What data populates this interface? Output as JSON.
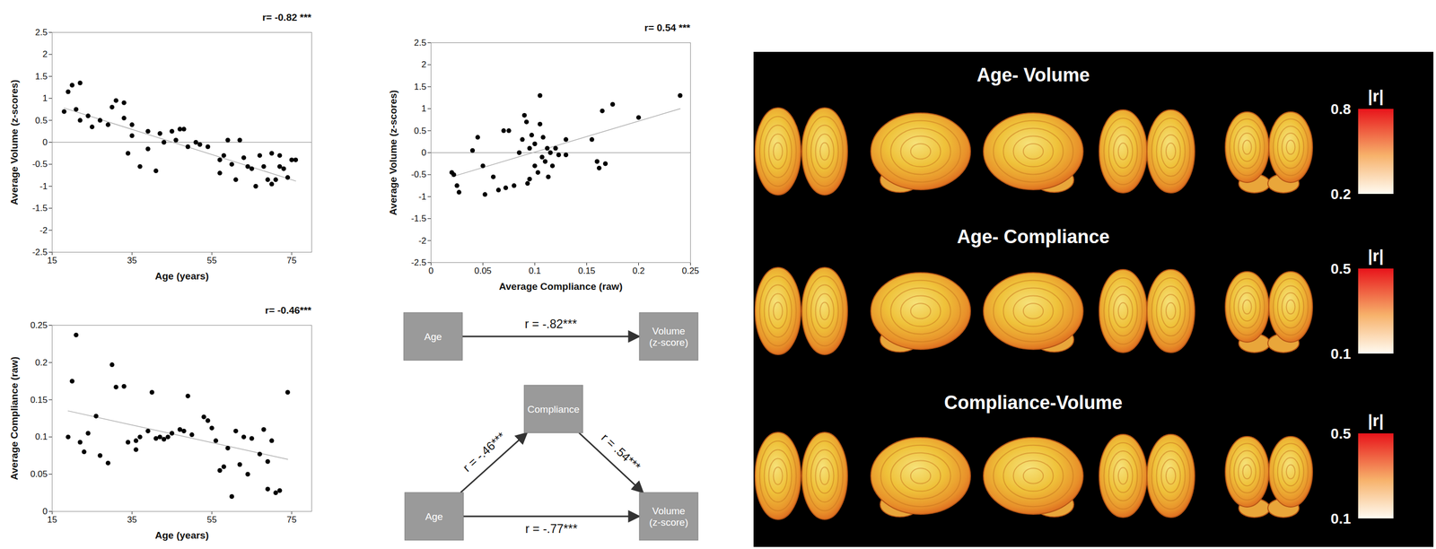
{
  "chart_data": [
    {
      "type": "scatter",
      "annotation": "r= -0.82 ***",
      "x_label": "Age (years)",
      "y_label": "Average Volume (z-scores)",
      "color": "#000000",
      "marker": "circle",
      "xlim": [
        15,
        80
      ],
      "xticks": [
        15,
        35,
        55,
        75
      ],
      "ylim": [
        -2.5,
        2.5
      ],
      "yticks": [
        -2.5,
        -2,
        -1.5,
        -1,
        -0.5,
        0,
        0.5,
        1,
        1.5,
        2,
        2.5
      ],
      "x": [
        18,
        19,
        20,
        21,
        22,
        22,
        24,
        25,
        27,
        29,
        30,
        31,
        33,
        33,
        34,
        35,
        35,
        37,
        39,
        39,
        41,
        42,
        43,
        45,
        46,
        47,
        48,
        49,
        51,
        52,
        54,
        57,
        57,
        58,
        59,
        60,
        61,
        62,
        63,
        64,
        65,
        66,
        67,
        68,
        69,
        70,
        70,
        71,
        72,
        72,
        73,
        74,
        75,
        76
      ],
      "y": [
        0.7,
        1.15,
        1.3,
        0.75,
        1.35,
        0.5,
        0.6,
        0.35,
        0.5,
        0.4,
        0.8,
        0.95,
        0.9,
        0.55,
        -0.25,
        0.4,
        0.15,
        -0.55,
        0.25,
        -0.15,
        -0.65,
        0.2,
        0,
        0.25,
        0.05,
        0.3,
        0.3,
        -0.1,
        0,
        -0.05,
        -0.1,
        -0.4,
        -0.7,
        -0.3,
        0.05,
        -0.5,
        -0.85,
        0.05,
        -0.35,
        -0.55,
        -0.6,
        -1.0,
        -0.3,
        -0.55,
        -0.85,
        -0.25,
        -0.95,
        -0.85,
        -0.3,
        -0.55,
        -0.6,
        -0.8,
        -0.4,
        -0.4
      ],
      "fit": {
        "x": [
          18,
          76
        ],
        "y": [
          0.78,
          -0.88
        ]
      }
    },
    {
      "type": "scatter",
      "annotation": "r= 0.54 ***",
      "x_label": "Average Compliance (raw)",
      "y_label": "Average Volume (z-scores)",
      "color": "#000000",
      "marker": "circle",
      "xlim": [
        0,
        0.25
      ],
      "xticks": [
        0,
        0.05,
        0.1,
        0.15,
        0.2,
        0.25
      ],
      "ylim": [
        -2.5,
        2.5
      ],
      "yticks": [
        -2.5,
        -2,
        -1.5,
        -1,
        -0.5,
        0,
        0.5,
        1,
        1.5,
        2,
        2.5
      ],
      "x": [
        0.02,
        0.022,
        0.025,
        0.027,
        0.04,
        0.045,
        0.05,
        0.052,
        0.06,
        0.065,
        0.07,
        0.072,
        0.075,
        0.08,
        0.085,
        0.088,
        0.09,
        0.092,
        0.093,
        0.095,
        0.095,
        0.097,
        0.1,
        0.1,
        0.103,
        0.105,
        0.105,
        0.107,
        0.108,
        0.11,
        0.112,
        0.113,
        0.115,
        0.117,
        0.12,
        0.123,
        0.13,
        0.13,
        0.155,
        0.16,
        0.162,
        0.165,
        0.168,
        0.175,
        0.2,
        0.24
      ],
      "y": [
        -0.45,
        -0.5,
        -0.75,
        -0.9,
        0.05,
        0.35,
        -0.3,
        -0.95,
        -0.55,
        -0.85,
        0.5,
        -0.8,
        0.5,
        -0.75,
        0,
        0.3,
        0.85,
        0.7,
        -0.7,
        0.1,
        -0.6,
        0.4,
        -0.3,
        0.2,
        -0.45,
        1.3,
        0.65,
        -0.1,
        0.35,
        -0.2,
        0.1,
        -0.55,
        0,
        -0.3,
        0.1,
        -0.05,
        -0.05,
        0.3,
        0.3,
        -0.2,
        -0.35,
        0.95,
        -0.25,
        1.1,
        0.8,
        1.3
      ],
      "fit": {
        "x": [
          0.02,
          0.24
        ],
        "y": [
          -0.55,
          1.0
        ]
      }
    },
    {
      "type": "scatter",
      "annotation": "r= -0.46***",
      "x_label": "Age (years)",
      "y_label": "Average Compliance (raw)",
      "color": "#000000",
      "marker": "circle",
      "xlim": [
        15,
        80
      ],
      "xticks": [
        15,
        35,
        55,
        75
      ],
      "ylim": [
        0,
        0.25
      ],
      "yticks": [
        0,
        0.05,
        0.1,
        0.15,
        0.2,
        0.25
      ],
      "x": [
        19,
        20,
        21,
        22,
        23,
        24,
        26,
        27,
        29,
        30,
        31,
        33,
        34,
        36,
        36,
        37,
        39,
        40,
        41,
        42,
        43,
        44,
        45,
        47,
        48,
        49,
        50,
        53,
        54,
        55,
        56,
        57,
        58,
        59,
        60,
        61,
        62,
        63,
        64,
        65,
        67,
        68,
        69,
        69,
        70,
        71,
        72,
        74
      ],
      "y": [
        0.1,
        0.175,
        0.237,
        0.093,
        0.08,
        0.105,
        0.128,
        0.075,
        0.065,
        0.197,
        0.167,
        0.168,
        0.093,
        0.095,
        0.083,
        0.1,
        0.108,
        0.16,
        0.098,
        0.1,
        0.097,
        0.1,
        0.105,
        0.11,
        0.108,
        0.155,
        0.103,
        0.127,
        0.122,
        0.112,
        0.095,
        0.055,
        0.06,
        0.085,
        0.02,
        0.108,
        0.063,
        0.1,
        0.05,
        0.098,
        0.077,
        0.11,
        0.03,
        0.067,
        0.095,
        0.025,
        0.028,
        0.16
      ],
      "fit": {
        "x": [
          19,
          74
        ],
        "y": [
          0.135,
          0.07
        ]
      }
    }
  ],
  "diagrams": [
    {
      "nodes": [
        "Age",
        "Volume (z-score)"
      ],
      "edges": [
        {
          "from": 0,
          "to": 1,
          "label": "r = -.82***"
        }
      ]
    },
    {
      "nodes": [
        "Age",
        "Compliance",
        "Volume (z-score)"
      ],
      "edges": [
        {
          "from": 0,
          "to": 1,
          "label": "r = -.46***"
        },
        {
          "from": 1,
          "to": 2,
          "label": "r = .54***"
        },
        {
          "from": 0,
          "to": 2,
          "label": "r = -.77***"
        }
      ]
    }
  ],
  "brain_maps": {
    "rows": [
      {
        "title": "Age- Volume",
        "colorbar": {
          "label": "|r|",
          "range": [
            0.2,
            0.8
          ],
          "ticks": [
            0.2,
            0.8
          ]
        }
      },
      {
        "title": "Age- Compliance",
        "colorbar": {
          "label": "|r|",
          "range": [
            0.1,
            0.5
          ],
          "ticks": [
            0.1,
            0.5
          ]
        }
      },
      {
        "title": "Compliance-Volume",
        "colorbar": {
          "label": "|r|",
          "range": [
            0.1,
            0.5
          ],
          "ticks": [
            0.1,
            0.5
          ]
        }
      }
    ]
  }
}
